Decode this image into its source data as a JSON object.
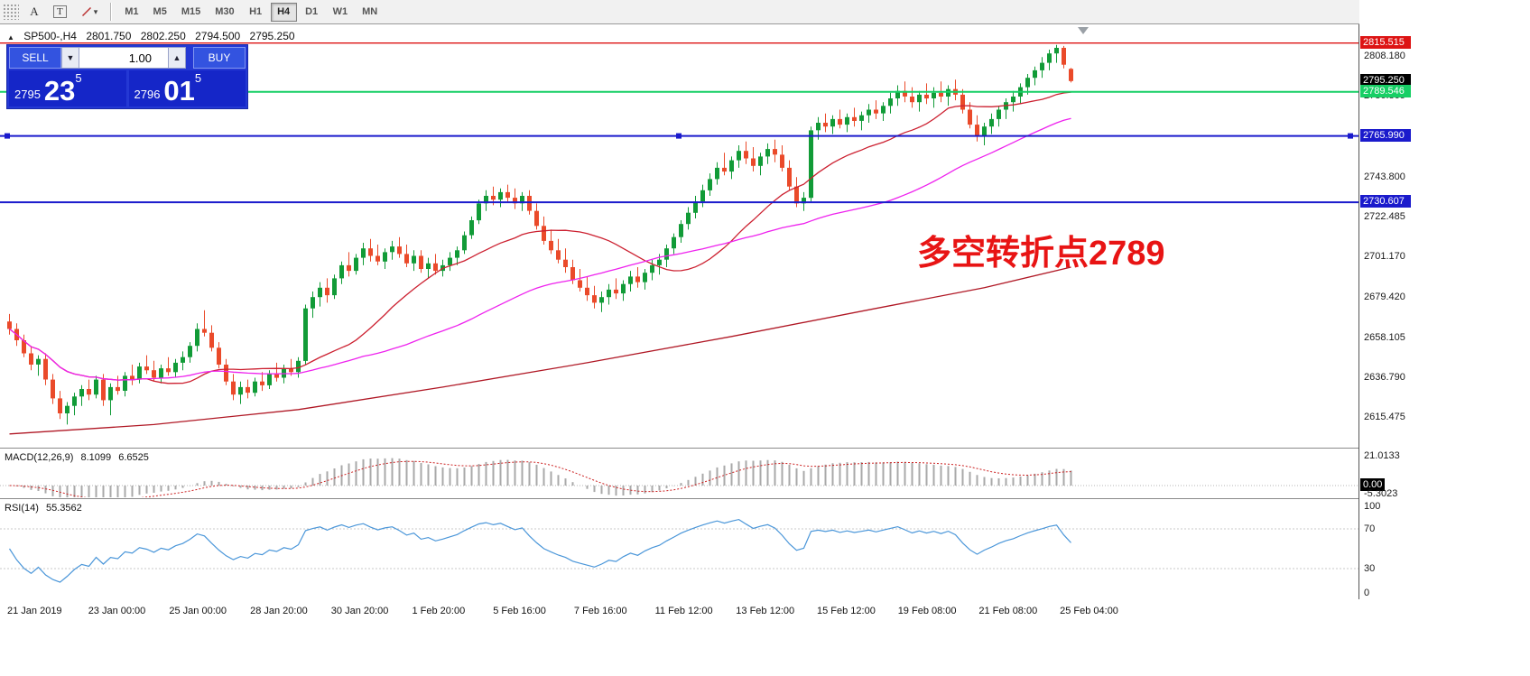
{
  "toolbar": {
    "tools": {
      "a": "A",
      "t": "T",
      "caret": "▾"
    },
    "timeframes": [
      {
        "label": "M1"
      },
      {
        "label": "M5"
      },
      {
        "label": "M15"
      },
      {
        "label": "M30"
      },
      {
        "label": "H1"
      },
      {
        "label": "H4"
      },
      {
        "label": "D1"
      },
      {
        "label": "W1"
      },
      {
        "label": "MN"
      }
    ],
    "active_timeframe": "H4"
  },
  "header": {
    "collapse_glyph": "▲",
    "symbol": "SP500-,H4",
    "open": "2801.750",
    "high": "2802.250",
    "low": "2794.500",
    "close": "2795.250"
  },
  "trade_panel": {
    "sell_label": "SELL",
    "buy_label": "BUY",
    "volume": "1.00",
    "volume_down_glyph": "▼",
    "volume_up_glyph": "▲",
    "sell_prefix": "2795",
    "sell_big": "23",
    "sell_sup": "5",
    "buy_prefix": "2796",
    "buy_big": "01",
    "buy_sup": "5"
  },
  "annotation": {
    "text": "多空转折点2789",
    "color": "#e81414"
  },
  "price_axis": {
    "ticks": [
      "2808.180",
      "2786.865",
      "2743.800",
      "2722.485",
      "2701.170",
      "2679.420",
      "2658.105",
      "2636.790",
      "2615.475"
    ],
    "badges": [
      {
        "label": "2815.515",
        "value": 2815.515,
        "bg": "#dd1414"
      },
      {
        "label": "2795.250",
        "value": 2795.25,
        "bg": "#000000"
      },
      {
        "label": "2789.546",
        "value": 2789.546,
        "bg": "#17cf65"
      },
      {
        "label": "2765.990",
        "value": 2765.99,
        "bg": "#1a1acc"
      },
      {
        "label": "2730.607",
        "value": 2730.607,
        "bg": "#1a1acc"
      }
    ]
  },
  "macd_panel": {
    "name": "MACD(12,26,9)",
    "value_main": "8.1099",
    "value_signal": "6.6525",
    "axis_top": "21.0133",
    "axis_zero_badge": "0.00",
    "axis_bottom": "-5.3023"
  },
  "rsi_panel": {
    "name": "RSI(14)",
    "value": "55.3562",
    "axis": [
      "100",
      "70",
      "30",
      "0"
    ]
  },
  "time_axis": {
    "labels": [
      "21 Jan 2019",
      "23 Jan 00:00",
      "25 Jan 00:00",
      "28 Jan 20:00",
      "30 Jan 20:00",
      "1 Feb 20:00",
      "5 Feb 16:00",
      "7 Feb 16:00",
      "11 Feb 12:00",
      "13 Feb 12:00",
      "15 Feb 12:00",
      "19 Feb 08:00",
      "21 Feb 08:00",
      "25 Feb 04:00"
    ]
  },
  "chart_data": {
    "type": "candlestick",
    "symbol": "SP500-",
    "timeframe": "H4",
    "price_range": [
      2600,
      2825.5
    ],
    "colors": {
      "up": "#119b37",
      "down": "#ea4a2a"
    },
    "levels": [
      {
        "value": 2815.515,
        "color": "#dd1414",
        "width": 1.4,
        "handles": false
      },
      {
        "value": 2789.546,
        "color": "#17cf65",
        "width": 2,
        "handles": false
      },
      {
        "value": 2765.99,
        "color": "#1a1acc",
        "width": 2,
        "handles": true
      },
      {
        "value": 2730.607,
        "color": "#1a1acc",
        "width": 2,
        "handles": false
      }
    ],
    "overlays": [
      {
        "name": "ma-fast",
        "type": "sma",
        "period": 20,
        "color": "#cc2030"
      },
      {
        "name": "ma-slow",
        "type": "sma",
        "period": 50,
        "color": "#ee22ee"
      },
      {
        "name": "ma-long",
        "type": "points",
        "color": "#b01825",
        "points": [
          [
            0,
            2607
          ],
          [
            20,
            2612
          ],
          [
            40,
            2620
          ],
          [
            60,
            2632
          ],
          [
            80,
            2645
          ],
          [
            100,
            2659
          ],
          [
            120,
            2674
          ],
          [
            135,
            2685
          ],
          [
            147,
            2696
          ]
        ]
      }
    ],
    "indicators": [
      {
        "name": "MACD",
        "params": [
          12,
          26,
          9
        ],
        "current": [
          8.1099,
          6.6525
        ],
        "axis_range": [
          -7,
          22
        ]
      },
      {
        "name": "RSI",
        "params": [
          14
        ],
        "current": [
          55.3562
        ],
        "levels": [
          70,
          30
        ]
      }
    ],
    "candles": [
      [
        2667,
        2671,
        2660,
        2663
      ],
      [
        2663,
        2666,
        2654,
        2657
      ],
      [
        2657,
        2660,
        2648,
        2650
      ],
      [
        2650,
        2654,
        2641,
        2644
      ],
      [
        2644,
        2649,
        2638,
        2647
      ],
      [
        2647,
        2650,
        2633,
        2636
      ],
      [
        2636,
        2639,
        2623,
        2626
      ],
      [
        2626,
        2630,
        2615,
        2618
      ],
      [
        2618,
        2624,
        2612,
        2622
      ],
      [
        2622,
        2629,
        2617,
        2627
      ],
      [
        2627,
        2633,
        2622,
        2631
      ],
      [
        2631,
        2636,
        2625,
        2628
      ],
      [
        2628,
        2638,
        2626,
        2636
      ],
      [
        2636,
        2639,
        2622,
        2625
      ],
      [
        2625,
        2634,
        2617,
        2632
      ],
      [
        2632,
        2638,
        2628,
        2630
      ],
      [
        2630,
        2640,
        2627,
        2638
      ],
      [
        2638,
        2644,
        2633,
        2636
      ],
      [
        2636,
        2645,
        2634,
        2643
      ],
      [
        2643,
        2649,
        2639,
        2641
      ],
      [
        2641,
        2646,
        2635,
        2637
      ],
      [
        2637,
        2644,
        2634,
        2642
      ],
      [
        2642,
        2648,
        2638,
        2640
      ],
      [
        2640,
        2647,
        2637,
        2645
      ],
      [
        2645,
        2651,
        2641,
        2648
      ],
      [
        2648,
        2656,
        2645,
        2654
      ],
      [
        2654,
        2666,
        2651,
        2663
      ],
      [
        2663,
        2673,
        2659,
        2661
      ],
      [
        2661,
        2665,
        2651,
        2653
      ],
      [
        2653,
        2656,
        2642,
        2644
      ],
      [
        2644,
        2647,
        2633,
        2635
      ],
      [
        2635,
        2639,
        2625,
        2628
      ],
      [
        2628,
        2635,
        2623,
        2632
      ],
      [
        2632,
        2636,
        2626,
        2629
      ],
      [
        2629,
        2637,
        2627,
        2635
      ],
      [
        2635,
        2640,
        2630,
        2633
      ],
      [
        2633,
        2641,
        2631,
        2639
      ],
      [
        2639,
        2645,
        2635,
        2637
      ],
      [
        2637,
        2644,
        2634,
        2642
      ],
      [
        2642,
        2647,
        2638,
        2640
      ],
      [
        2640,
        2648,
        2637,
        2646
      ],
      [
        2646,
        2676,
        2644,
        2674
      ],
      [
        2674,
        2683,
        2669,
        2680
      ],
      [
        2680,
        2688,
        2675,
        2685
      ],
      [
        2685,
        2690,
        2677,
        2681
      ],
      [
        2681,
        2692,
        2679,
        2690
      ],
      [
        2690,
        2699,
        2687,
        2697
      ],
      [
        2697,
        2704,
        2691,
        2694
      ],
      [
        2694,
        2703,
        2692,
        2701
      ],
      [
        2701,
        2709,
        2697,
        2706
      ],
      [
        2706,
        2711,
        2699,
        2702
      ],
      [
        2702,
        2708,
        2697,
        2699
      ],
      [
        2699,
        2706,
        2695,
        2704
      ],
      [
        2704,
        2710,
        2700,
        2707
      ],
      [
        2707,
        2712,
        2701,
        2703
      ],
      [
        2703,
        2708,
        2696,
        2698
      ],
      [
        2698,
        2705,
        2694,
        2702
      ],
      [
        2702,
        2705,
        2693,
        2695
      ],
      [
        2695,
        2701,
        2690,
        2698
      ],
      [
        2698,
        2703,
        2692,
        2694
      ],
      [
        2694,
        2700,
        2691,
        2697
      ],
      [
        2697,
        2704,
        2694,
        2701
      ],
      [
        2701,
        2707,
        2697,
        2705
      ],
      [
        2705,
        2715,
        2703,
        2713
      ],
      [
        2713,
        2723,
        2711,
        2721
      ],
      [
        2721,
        2732,
        2719,
        2730
      ],
      [
        2730,
        2737,
        2726,
        2734
      ],
      [
        2734,
        2739,
        2729,
        2732
      ],
      [
        2732,
        2738,
        2728,
        2736
      ],
      [
        2736,
        2740,
        2731,
        2733
      ],
      [
        2733,
        2738,
        2727,
        2730
      ],
      [
        2730,
        2736,
        2726,
        2734
      ],
      [
        2734,
        2737,
        2724,
        2726
      ],
      [
        2726,
        2730,
        2716,
        2718
      ],
      [
        2718,
        2723,
        2708,
        2710
      ],
      [
        2710,
        2716,
        2703,
        2705
      ],
      [
        2705,
        2711,
        2698,
        2700
      ],
      [
        2700,
        2706,
        2693,
        2696
      ],
      [
        2696,
        2700,
        2687,
        2689
      ],
      [
        2689,
        2695,
        2683,
        2685
      ],
      [
        2685,
        2691,
        2678,
        2681
      ],
      [
        2681,
        2686,
        2674,
        2677
      ],
      [
        2677,
        2683,
        2672,
        2680
      ],
      [
        2680,
        2687,
        2676,
        2684
      ],
      [
        2684,
        2690,
        2679,
        2682
      ],
      [
        2682,
        2689,
        2678,
        2687
      ],
      [
        2687,
        2694,
        2683,
        2691
      ],
      [
        2691,
        2696,
        2685,
        2688
      ],
      [
        2688,
        2695,
        2684,
        2693
      ],
      [
        2693,
        2700,
        2689,
        2697
      ],
      [
        2697,
        2703,
        2692,
        2700
      ],
      [
        2700,
        2708,
        2696,
        2706
      ],
      [
        2706,
        2714,
        2703,
        2712
      ],
      [
        2712,
        2721,
        2709,
        2719
      ],
      [
        2719,
        2728,
        2716,
        2725
      ],
      [
        2725,
        2734,
        2722,
        2731
      ],
      [
        2731,
        2740,
        2728,
        2737
      ],
      [
        2737,
        2746,
        2734,
        2743
      ],
      [
        2743,
        2752,
        2740,
        2749
      ],
      [
        2749,
        2757,
        2745,
        2747
      ],
      [
        2747,
        2755,
        2743,
        2753
      ],
      [
        2753,
        2761,
        2749,
        2758
      ],
      [
        2758,
        2763,
        2751,
        2754
      ],
      [
        2754,
        2760,
        2747,
        2750
      ],
      [
        2750,
        2757,
        2745,
        2755
      ],
      [
        2755,
        2762,
        2751,
        2759
      ],
      [
        2759,
        2764,
        2752,
        2756
      ],
      [
        2756,
        2761,
        2747,
        2749
      ],
      [
        2749,
        2753,
        2737,
        2739
      ],
      [
        2739,
        2744,
        2728,
        2730
      ],
      [
        2730,
        2736,
        2726,
        2733
      ],
      [
        2733,
        2771,
        2731,
        2769
      ],
      [
        2769,
        2776,
        2764,
        2773
      ],
      [
        2773,
        2778,
        2768,
        2771
      ],
      [
        2771,
        2777,
        2767,
        2775
      ],
      [
        2775,
        2780,
        2770,
        2772
      ],
      [
        2772,
        2778,
        2768,
        2776
      ],
      [
        2776,
        2781,
        2771,
        2774
      ],
      [
        2774,
        2779,
        2769,
        2777
      ],
      [
        2777,
        2783,
        2773,
        2780
      ],
      [
        2780,
        2785,
        2775,
        2778
      ],
      [
        2778,
        2784,
        2774,
        2782
      ],
      [
        2782,
        2789,
        2778,
        2786
      ],
      [
        2786,
        2793,
        2782,
        2790
      ],
      [
        2790,
        2795,
        2784,
        2787
      ],
      [
        2787,
        2792,
        2781,
        2784
      ],
      [
        2784,
        2790,
        2779,
        2788
      ],
      [
        2788,
        2794,
        2783,
        2786
      ],
      [
        2786,
        2792,
        2781,
        2789
      ],
      [
        2789,
        2795,
        2784,
        2787
      ],
      [
        2787,
        2793,
        2782,
        2791
      ],
      [
        2791,
        2796,
        2785,
        2788
      ],
      [
        2788,
        2791,
        2778,
        2780
      ],
      [
        2780,
        2784,
        2770,
        2772
      ],
      [
        2772,
        2777,
        2763,
        2766
      ],
      [
        2766,
        2773,
        2761,
        2771
      ],
      [
        2771,
        2778,
        2767,
        2775
      ],
      [
        2775,
        2782,
        2771,
        2780
      ],
      [
        2780,
        2786,
        2775,
        2784
      ],
      [
        2784,
        2790,
        2779,
        2787
      ],
      [
        2787,
        2794,
        2783,
        2792
      ],
      [
        2792,
        2799,
        2788,
        2797
      ],
      [
        2797,
        2803,
        2793,
        2801
      ],
      [
        2801,
        2808,
        2797,
        2805
      ],
      [
        2805,
        2812,
        2801,
        2810
      ],
      [
        2810,
        2814.5,
        2805,
        2813
      ],
      [
        2813,
        2814,
        2802,
        2804
      ],
      [
        2801.75,
        2802.25,
        2794.5,
        2795.25
      ]
    ]
  }
}
